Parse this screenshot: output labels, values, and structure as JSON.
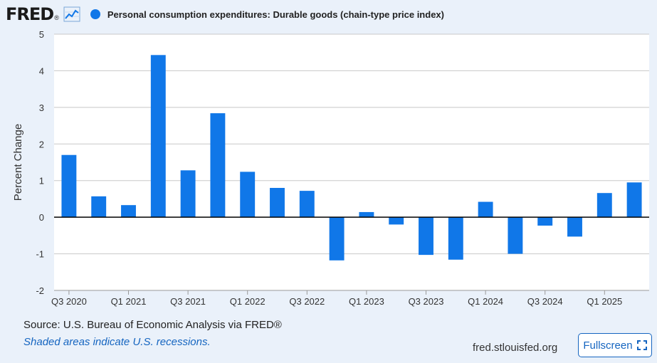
{
  "header": {
    "logo_text": "FRED",
    "logo_mark": "®",
    "series_label": "Personal consumption expenditures: Durable goods (chain-type price index)"
  },
  "colors": {
    "bar": "#1077e8",
    "background": "#eaf1fa",
    "plot_background": "#ffffff",
    "grid": "#c8c8c8",
    "zero_line": "#000000",
    "link": "#1565c0"
  },
  "icons": {
    "logo_chart": "line-chart-icon",
    "legend": "circle-icon",
    "fullscreen": "fullscreen-icon"
  },
  "chart_data": {
    "type": "bar",
    "title": "Personal consumption expenditures: Durable goods (chain-type price index)",
    "xlabel": "",
    "ylabel": "Percent Change",
    "ylim": [
      -2,
      5
    ],
    "yticks": [
      5,
      4,
      3,
      2,
      1,
      0,
      -1,
      -2
    ],
    "grid": true,
    "legend": "top-left",
    "categories": [
      "Q3 2020",
      "Q4 2020",
      "Q1 2021",
      "Q2 2021",
      "Q3 2021",
      "Q4 2021",
      "Q1 2022",
      "Q2 2022",
      "Q3 2022",
      "Q4 2022",
      "Q1 2023",
      "Q2 2023",
      "Q3 2023",
      "Q4 2023",
      "Q1 2024",
      "Q2 2024",
      "Q3 2024",
      "Q4 2024",
      "Q1 2025",
      "Q2 2025"
    ],
    "tick_labels": [
      "Q3 2020",
      "Q1 2021",
      "Q3 2021",
      "Q1 2022",
      "Q3 2022",
      "Q1 2023",
      "Q3 2023",
      "Q1 2024",
      "Q3 2024",
      "Q1 2025"
    ],
    "series": [
      {
        "name": "Personal consumption expenditures: Durable goods (chain-type price index)",
        "values": [
          1.7,
          0.57,
          0.33,
          4.43,
          1.28,
          2.84,
          1.24,
          0.8,
          0.72,
          -1.18,
          0.14,
          -0.2,
          -1.03,
          -1.16,
          0.42,
          -1.0,
          -0.23,
          -0.53,
          0.66,
          0.95
        ]
      }
    ]
  },
  "footer": {
    "source": "Source: U.S. Bureau of Economic Analysis via FRED®",
    "recessions_note": "Shaded areas indicate U.S. recessions.",
    "url": "fred.stlouisfed.org",
    "fullscreen_label": "Fullscreen"
  }
}
